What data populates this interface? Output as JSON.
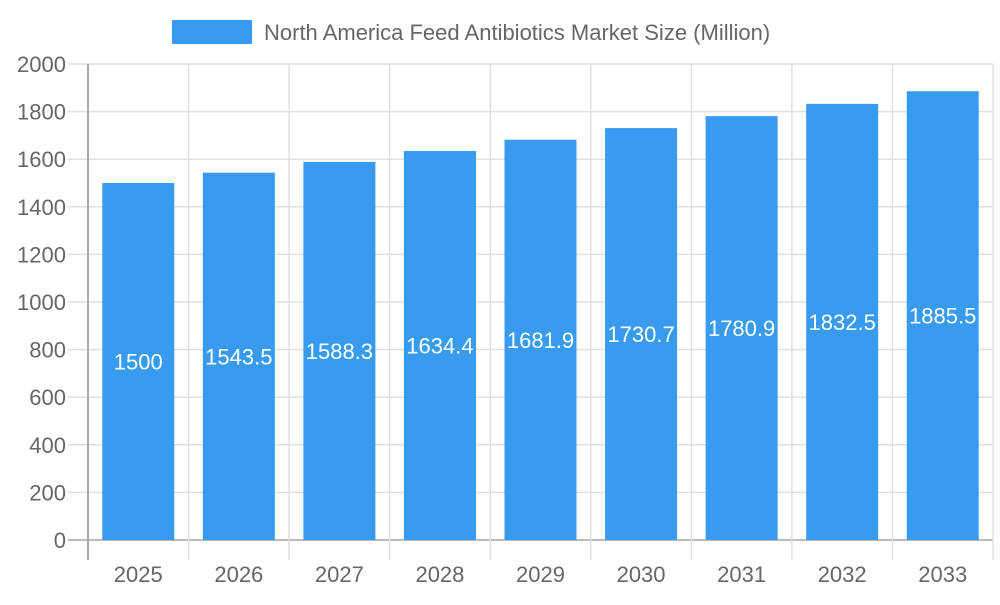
{
  "chart_data": {
    "type": "bar",
    "title": "",
    "xlabel": "",
    "ylabel": "",
    "categories": [
      "2025",
      "2026",
      "2027",
      "2028",
      "2029",
      "2030",
      "2031",
      "2032",
      "2033"
    ],
    "series": [
      {
        "name": "North America Feed Antibiotics Market Size (Million)",
        "values": [
          1500,
          1543.5,
          1588.3,
          1634.4,
          1681.9,
          1730.7,
          1780.9,
          1832.5,
          1885.5
        ],
        "color": "#389bef"
      }
    ],
    "ylim": [
      0,
      2000
    ],
    "yticks": [
      0,
      200,
      400,
      600,
      800,
      1000,
      1200,
      1400,
      1600,
      1800,
      2000
    ],
    "grid": true,
    "legend": "top-center",
    "data_labels": "inside-center"
  }
}
